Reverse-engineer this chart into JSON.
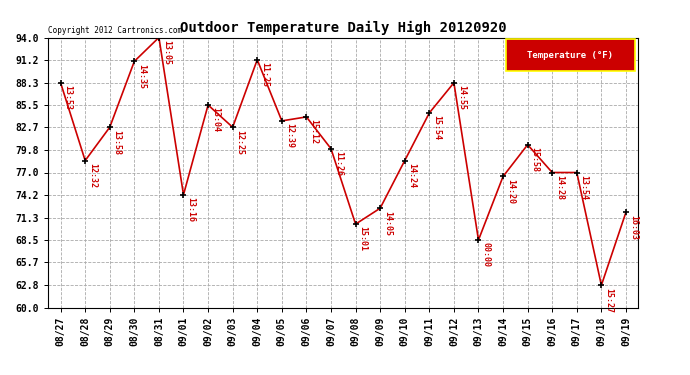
{
  "title": "Outdoor Temperature Daily High 20120920",
  "copyright": "Copyright 2012 Cartronics.com",
  "legend_label": "Temperature (°F)",
  "dates": [
    "08/27",
    "08/28",
    "08/29",
    "08/30",
    "08/31",
    "09/01",
    "09/02",
    "09/03",
    "09/04",
    "09/05",
    "09/06",
    "09/07",
    "09/08",
    "09/09",
    "09/10",
    "09/11",
    "09/12",
    "09/13",
    "09/14",
    "09/15",
    "09/16",
    "09/17",
    "09/18",
    "09/19"
  ],
  "temperatures": [
    88.3,
    78.5,
    82.7,
    91.0,
    94.0,
    74.2,
    85.5,
    82.7,
    91.2,
    83.5,
    84.0,
    80.0,
    70.5,
    72.5,
    78.5,
    84.5,
    88.3,
    68.5,
    76.5,
    80.5,
    77.0,
    77.0,
    62.8,
    72.0
  ],
  "time_labels": [
    "13:53",
    "12:32",
    "13:58",
    "14:35",
    "13:05",
    "13:16",
    "13:04",
    "12:25",
    "11:25",
    "12:39",
    "15:12",
    "11:26",
    "15:01",
    "14:05",
    "14:24",
    "15:54",
    "14:55",
    "00:00",
    "14:20",
    "15:58",
    "14:28",
    "13:54",
    "15:27",
    "16:03"
  ],
  "ylim": [
    60.0,
    94.0
  ],
  "yticks": [
    60.0,
    62.8,
    65.7,
    68.5,
    71.3,
    74.2,
    77.0,
    79.8,
    82.7,
    85.5,
    88.3,
    91.2,
    94.0
  ],
  "line_color": "#cc0000",
  "marker_color": "#000000",
  "bg_color": "#ffffff",
  "grid_color": "#aaaaaa",
  "label_color": "#cc0000",
  "title_color": "#000000",
  "legend_bg": "#cc0000",
  "legend_text": "#ffffff"
}
